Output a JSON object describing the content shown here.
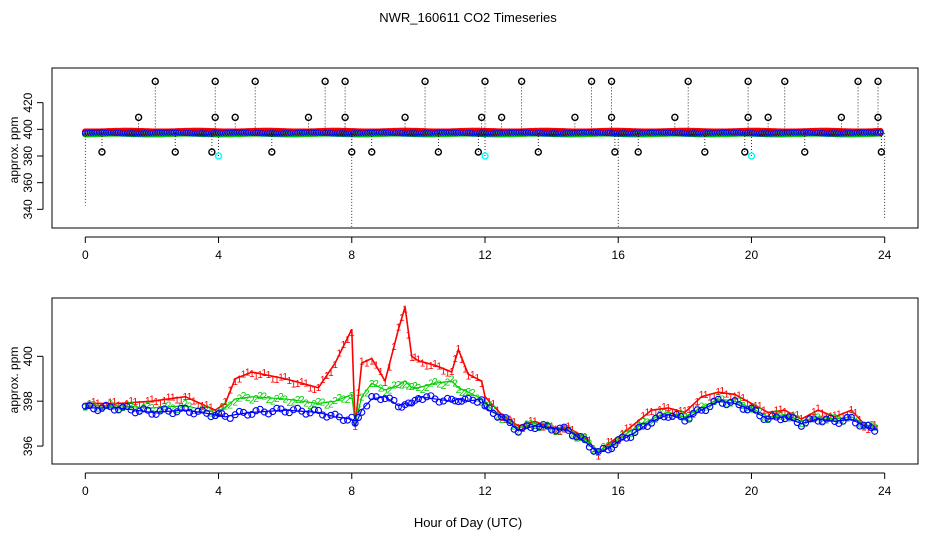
{
  "title": "NWR_160611  CO2 Timeseries",
  "xlabel": "Hour of Day (UTC)",
  "colors": {
    "black": "#000000",
    "red": "#ff0000",
    "green": "#00cd00",
    "blue": "#0000ff",
    "cyan": "#00ffff"
  },
  "chart_data": [
    {
      "type": "scatter",
      "ylabel": "approx. ppm",
      "xlim": [
        -1,
        25
      ],
      "ylim": [
        326,
        446
      ],
      "xticks": [
        0,
        4,
        8,
        12,
        16,
        20,
        24
      ],
      "yticks": [
        340,
        360,
        380,
        400,
        420
      ],
      "baseline": 397.3,
      "series": [
        {
          "name": "black-high",
          "marker": "circle",
          "color": "#000000",
          "x": [
            2.1,
            3.9,
            5.1,
            7.2,
            7.8,
            10.2,
            12.0,
            13.1,
            15.2,
            15.8,
            18.1,
            19.9,
            21.0,
            23.2,
            23.8
          ],
          "y": [
            436,
            436,
            436,
            436,
            436,
            436,
            436,
            436,
            436,
            436,
            436,
            436,
            436,
            436,
            436
          ]
        },
        {
          "name": "black-mid",
          "marker": "circle",
          "color": "#000000",
          "x": [
            1.6,
            3.9,
            4.5,
            6.7,
            7.8,
            9.6,
            11.9,
            12.5,
            14.7,
            15.8,
            17.7,
            19.9,
            20.5,
            22.7,
            23.8
          ],
          "y": [
            409,
            409,
            409,
            409,
            409,
            409,
            409,
            409,
            409,
            409,
            409,
            409,
            409,
            409,
            409
          ]
        },
        {
          "name": "black-low",
          "marker": "circle",
          "color": "#000000",
          "x": [
            0.5,
            2.7,
            3.8,
            5.6,
            8.0,
            8.6,
            10.6,
            11.8,
            13.6,
            15.9,
            16.6,
            18.6,
            19.8,
            21.6,
            23.9
          ],
          "y": [
            383,
            383,
            383,
            383,
            383,
            383,
            383,
            383,
            383,
            383,
            383,
            383,
            383,
            383,
            383
          ]
        },
        {
          "name": "cyan-low",
          "marker": "circle",
          "color": "#00ffff",
          "x": [
            4.0,
            12.0,
            20.0
          ],
          "y": [
            380,
            380,
            380
          ]
        },
        {
          "name": "tail-drops",
          "marker": "dotted-line",
          "color": "#000000",
          "x": [
            0.0,
            8.0,
            16.0,
            24.0
          ],
          "y": [
            343,
            326,
            326,
            333
          ]
        }
      ]
    },
    {
      "type": "line",
      "ylabel": "approx. ppm",
      "xlim": [
        -1,
        25
      ],
      "ylim": [
        395.2,
        402.6
      ],
      "xticks": [
        0,
        4,
        8,
        12,
        16,
        20,
        24
      ],
      "yticks": [
        396,
        398,
        400
      ],
      "series": [
        {
          "name": "1",
          "label": "1",
          "color": "#ff0000",
          "x": [
            0,
            1,
            2,
            3,
            3.9,
            4.2,
            4.5,
            5,
            6,
            7,
            7.5,
            8,
            8.1,
            8.3,
            8.6,
            9,
            9.4,
            9.6,
            9.8,
            10,
            10.5,
            11,
            11.2,
            11.5,
            11.9,
            12,
            12.5,
            13,
            13.5,
            14,
            14.5,
            15,
            15.4,
            15.7,
            16,
            16.5,
            17,
            17.5,
            18,
            18.5,
            19,
            19.5,
            20,
            20.5,
            21,
            21.5,
            22,
            22.5,
            23,
            23.5,
            23.8
          ],
          "y": [
            397.9,
            397.9,
            398.0,
            398.2,
            397.6,
            397.9,
            399.0,
            399.3,
            399.0,
            398.6,
            399.7,
            401.2,
            396.9,
            399.7,
            399.9,
            398.9,
            401.2,
            402.2,
            400.0,
            399.8,
            399.6,
            399.3,
            400.3,
            399.2,
            398.9,
            398.2,
            397.4,
            396.9,
            397.1,
            396.8,
            396.8,
            396.4,
            395.7,
            396.1,
            396.4,
            397.0,
            397.6,
            397.7,
            397.5,
            398.2,
            398.4,
            398.3,
            397.9,
            397.5,
            397.6,
            397.2,
            397.6,
            397.3,
            397.6,
            396.8,
            396.9
          ]
        },
        {
          "name": "2",
          "label": "2",
          "color": "#00cd00",
          "x": [
            0,
            1,
            2,
            3,
            3.9,
            4.2,
            4.5,
            5,
            6,
            7,
            7.5,
            8,
            8.1,
            8.3,
            8.6,
            9,
            9.4,
            9.6,
            9.8,
            10,
            10.5,
            11,
            11.2,
            11.5,
            11.9,
            12,
            12.5,
            13,
            13.5,
            14,
            14.5,
            15,
            15.4,
            15.7,
            16,
            16.5,
            17,
            17.5,
            18,
            18.5,
            19,
            19.5,
            20,
            20.5,
            21,
            21.5,
            22,
            22.5,
            23,
            23.5,
            23.8
          ],
          "y": [
            397.8,
            397.8,
            397.7,
            397.8,
            397.5,
            397.7,
            398.1,
            398.2,
            398.1,
            397.9,
            398.0,
            398.3,
            397.0,
            398.2,
            398.8,
            398.5,
            398.7,
            398.9,
            398.6,
            398.6,
            398.8,
            398.9,
            398.6,
            398.4,
            398.1,
            397.9,
            397.3,
            396.8,
            397.0,
            396.8,
            396.7,
            396.3,
            395.8,
            396.0,
            396.3,
            396.8,
            397.2,
            397.5,
            397.3,
            397.7,
            398.1,
            398.0,
            397.7,
            397.3,
            397.4,
            397.1,
            397.3,
            397.2,
            397.3,
            396.9,
            396.8
          ]
        },
        {
          "name": "3",
          "label": "o",
          "color": "#0000ff",
          "x": [
            0,
            1,
            2,
            3,
            3.9,
            4.2,
            4.5,
            5,
            6,
            7,
            7.5,
            8,
            8.1,
            8.3,
            8.6,
            9,
            9.4,
            9.6,
            9.8,
            10,
            10.5,
            11,
            11.2,
            11.5,
            11.9,
            12,
            12.5,
            13,
            13.5,
            14,
            14.5,
            15,
            15.4,
            15.7,
            16,
            16.5,
            17,
            17.5,
            18,
            18.5,
            19,
            19.5,
            20,
            20.5,
            21,
            21.5,
            22,
            22.5,
            23,
            23.5,
            23.8
          ],
          "y": [
            397.7,
            397.7,
            397.5,
            397.6,
            397.4,
            397.3,
            397.4,
            397.5,
            397.6,
            397.5,
            397.3,
            397.2,
            396.9,
            397.6,
            398.1,
            398.2,
            397.8,
            397.9,
            397.8,
            398.2,
            398.1,
            398.0,
            398.1,
            398.0,
            398.1,
            397.7,
            397.3,
            396.7,
            396.9,
            396.8,
            396.7,
            396.2,
            395.7,
            395.9,
            396.2,
            396.6,
            397.1,
            397.4,
            397.2,
            397.6,
            398.0,
            397.9,
            397.6,
            397.2,
            397.3,
            397.0,
            397.2,
            397.1,
            397.2,
            396.8,
            396.7
          ]
        }
      ]
    }
  ]
}
